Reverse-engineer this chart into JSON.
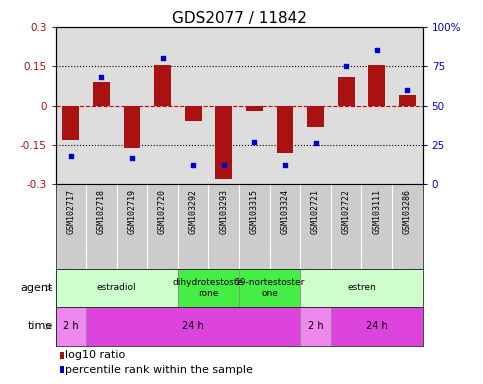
{
  "title": "GDS2077 / 11842",
  "samples": [
    "GSM102717",
    "GSM102718",
    "GSM102719",
    "GSM102720",
    "GSM103292",
    "GSM103293",
    "GSM103315",
    "GSM103324",
    "GSM102721",
    "GSM102722",
    "GSM103111",
    "GSM103286"
  ],
  "log10_ratio": [
    -0.13,
    0.09,
    -0.16,
    0.155,
    -0.06,
    -0.28,
    -0.02,
    -0.18,
    -0.08,
    0.11,
    0.155,
    0.04
  ],
  "percentile": [
    18,
    68,
    17,
    80,
    12,
    12,
    27,
    12,
    26,
    75,
    85,
    60
  ],
  "ylim": [
    -0.3,
    0.3
  ],
  "y2lim": [
    0,
    100
  ],
  "yticks": [
    -0.3,
    -0.15,
    0,
    0.15,
    0.3
  ],
  "y2ticks": [
    0,
    25,
    50,
    75,
    100
  ],
  "bar_color": "#aa1111",
  "dot_color": "#0000cc",
  "bar_width": 0.55,
  "agent_row": [
    {
      "label": "estradiol",
      "start": 0,
      "end": 4,
      "color": "#ccffcc"
    },
    {
      "label": "dihydrotestoste\nrone",
      "start": 4,
      "end": 6,
      "color": "#44ee44"
    },
    {
      "label": "19-nortestoster\none",
      "start": 6,
      "end": 8,
      "color": "#44ee44"
    },
    {
      "label": "estren",
      "start": 8,
      "end": 12,
      "color": "#ccffcc"
    }
  ],
  "time_row": [
    {
      "label": "2 h",
      "start": 0,
      "end": 1,
      "color": "#ee88ee"
    },
    {
      "label": "24 h",
      "start": 1,
      "end": 8,
      "color": "#dd44dd"
    },
    {
      "label": "2 h",
      "start": 8,
      "end": 9,
      "color": "#ee88ee"
    },
    {
      "label": "24 h",
      "start": 9,
      "end": 12,
      "color": "#dd44dd"
    }
  ],
  "legend_items": [
    {
      "color": "#aa1111",
      "label": "log10 ratio"
    },
    {
      "color": "#0000cc",
      "label": "percentile rank within the sample"
    }
  ],
  "left_tick_color": "#aa1111",
  "right_tick_color": "#0000cc",
  "title_fontsize": 11,
  "tick_fontsize": 7.5,
  "sample_fontsize": 6,
  "label_fontsize": 8,
  "legend_fontsize": 8,
  "background_color": "#ffffff",
  "plot_bg_color": "#dddddd"
}
